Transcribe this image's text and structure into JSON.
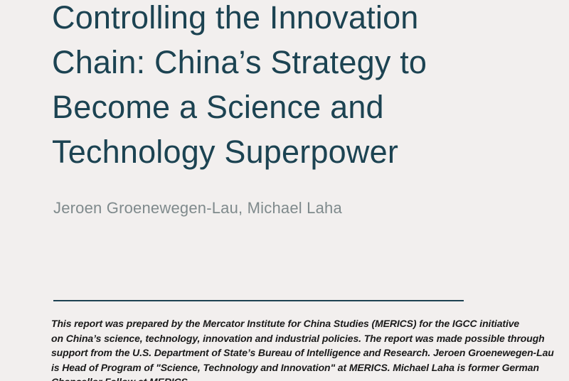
{
  "page": {
    "background_color": "#f2efee"
  },
  "title": {
    "color": "#1c4352",
    "lines": [
      "Controlling the Innovation",
      "Chain: China’s Strategy to",
      "Become a Science and",
      "Technology Superpower"
    ]
  },
  "authors": {
    "color": "#7f8a8c",
    "text": "Jeroen Groenewegen-Lau, Michael Laha"
  },
  "divider": {
    "color": "#1d4152"
  },
  "footnote": {
    "color": "#1a1a1a",
    "lines": [
      "This report was prepared by the Mercator Institute for China Studies (MERICS) for the IGCC initiative",
      "on China’s science, technology, innovation and industrial policies. The report was made possible through",
      "support from the U.S. Department of State’s Bureau of Intelligence and Research. Jeroen Groenewegen-Lau",
      "is Head of Program of \"Science, Technology and Innovation\" at MERICS. Michael Laha is former German",
      "Chancellor Fellow at MERICS."
    ]
  }
}
